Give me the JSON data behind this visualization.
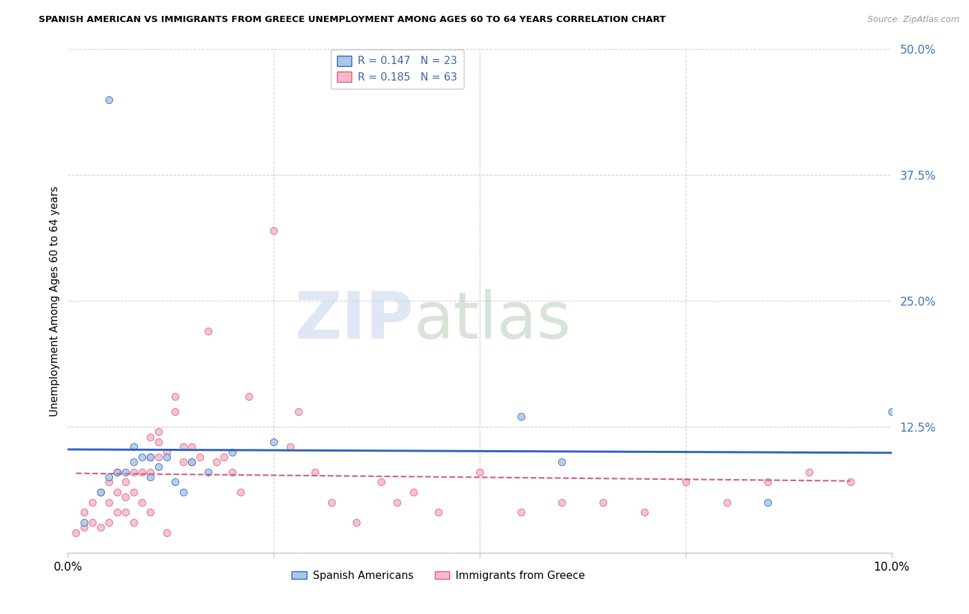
{
  "title": "SPANISH AMERICAN VS IMMIGRANTS FROM GREECE UNEMPLOYMENT AMONG AGES 60 TO 64 YEARS CORRELATION CHART",
  "source": "Source: ZipAtlas.com",
  "ylabel": "Unemployment Among Ages 60 to 64 years",
  "xlim": [
    0.0,
    0.1
  ],
  "ylim": [
    0.0,
    0.5
  ],
  "ytick_labels": [
    "50.0%",
    "37.5%",
    "25.0%",
    "12.5%"
  ],
  "ytick_positions": [
    0.5,
    0.375,
    0.25,
    0.125
  ],
  "background_color": "#ffffff",
  "grid_color": "#d0d0d0",
  "legend1_r": "0.147",
  "legend1_n": "23",
  "legend2_r": "0.185",
  "legend2_n": "63",
  "legend_label1": "Spanish Americans",
  "legend_label2": "Immigrants from Greece",
  "series1_color": "#a8c8e8",
  "series2_color": "#f8b8c8",
  "trendline1_color": "#3060c0",
  "trendline2_color": "#d06080",
  "series1_x": [
    0.002,
    0.004,
    0.005,
    0.006,
    0.007,
    0.008,
    0.008,
    0.009,
    0.01,
    0.01,
    0.011,
    0.012,
    0.013,
    0.014,
    0.015,
    0.017,
    0.02,
    0.025,
    0.055,
    0.06,
    0.085,
    0.1,
    0.005
  ],
  "series1_y": [
    0.03,
    0.06,
    0.075,
    0.08,
    0.08,
    0.09,
    0.105,
    0.095,
    0.075,
    0.095,
    0.085,
    0.095,
    0.07,
    0.06,
    0.09,
    0.08,
    0.1,
    0.11,
    0.135,
    0.09,
    0.05,
    0.14,
    0.45
  ],
  "series2_x": [
    0.001,
    0.002,
    0.002,
    0.003,
    0.003,
    0.004,
    0.004,
    0.005,
    0.005,
    0.005,
    0.006,
    0.006,
    0.006,
    0.007,
    0.007,
    0.007,
    0.008,
    0.008,
    0.008,
    0.009,
    0.009,
    0.01,
    0.01,
    0.01,
    0.01,
    0.011,
    0.011,
    0.011,
    0.012,
    0.012,
    0.013,
    0.013,
    0.014,
    0.014,
    0.015,
    0.015,
    0.016,
    0.017,
    0.018,
    0.019,
    0.02,
    0.021,
    0.022,
    0.025,
    0.027,
    0.028,
    0.03,
    0.032,
    0.035,
    0.038,
    0.04,
    0.042,
    0.045,
    0.05,
    0.055,
    0.06,
    0.065,
    0.07,
    0.075,
    0.08,
    0.085,
    0.09,
    0.095
  ],
  "series2_y": [
    0.02,
    0.025,
    0.04,
    0.03,
    0.05,
    0.025,
    0.06,
    0.03,
    0.05,
    0.07,
    0.04,
    0.06,
    0.08,
    0.04,
    0.055,
    0.07,
    0.03,
    0.06,
    0.08,
    0.05,
    0.08,
    0.04,
    0.08,
    0.095,
    0.115,
    0.095,
    0.11,
    0.12,
    0.02,
    0.1,
    0.14,
    0.155,
    0.09,
    0.105,
    0.09,
    0.105,
    0.095,
    0.22,
    0.09,
    0.095,
    0.08,
    0.06,
    0.155,
    0.32,
    0.105,
    0.14,
    0.08,
    0.05,
    0.03,
    0.07,
    0.05,
    0.06,
    0.04,
    0.08,
    0.04,
    0.05,
    0.05,
    0.04,
    0.07,
    0.05,
    0.07,
    0.08,
    0.07
  ]
}
